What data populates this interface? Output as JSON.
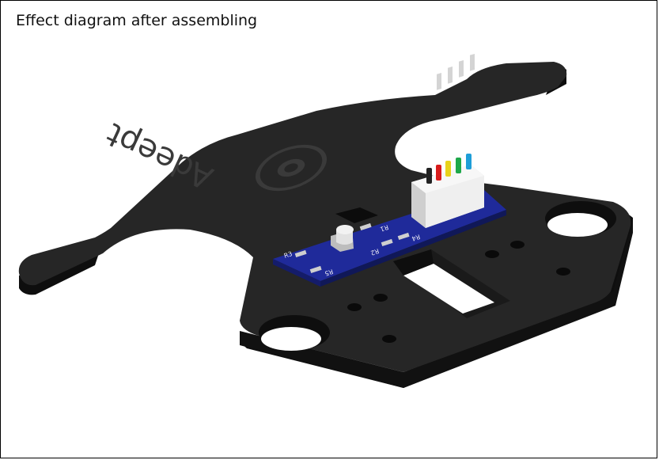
{
  "caption": "Effect diagram after assembling",
  "brand_engraving": "Adeept",
  "pcb": {
    "resistor_labels": [
      "R3",
      "R1",
      "R2",
      "R4",
      "R5"
    ]
  },
  "wire_colors": [
    "#222222",
    "#d81b1b",
    "#e8d21a",
    "#1ea84a",
    "#1e9ed8"
  ],
  "colors": {
    "plate": "#262626",
    "plate_side": "#0e0e0e",
    "pcb": "#1f2a9a",
    "connector": "#ececec"
  }
}
